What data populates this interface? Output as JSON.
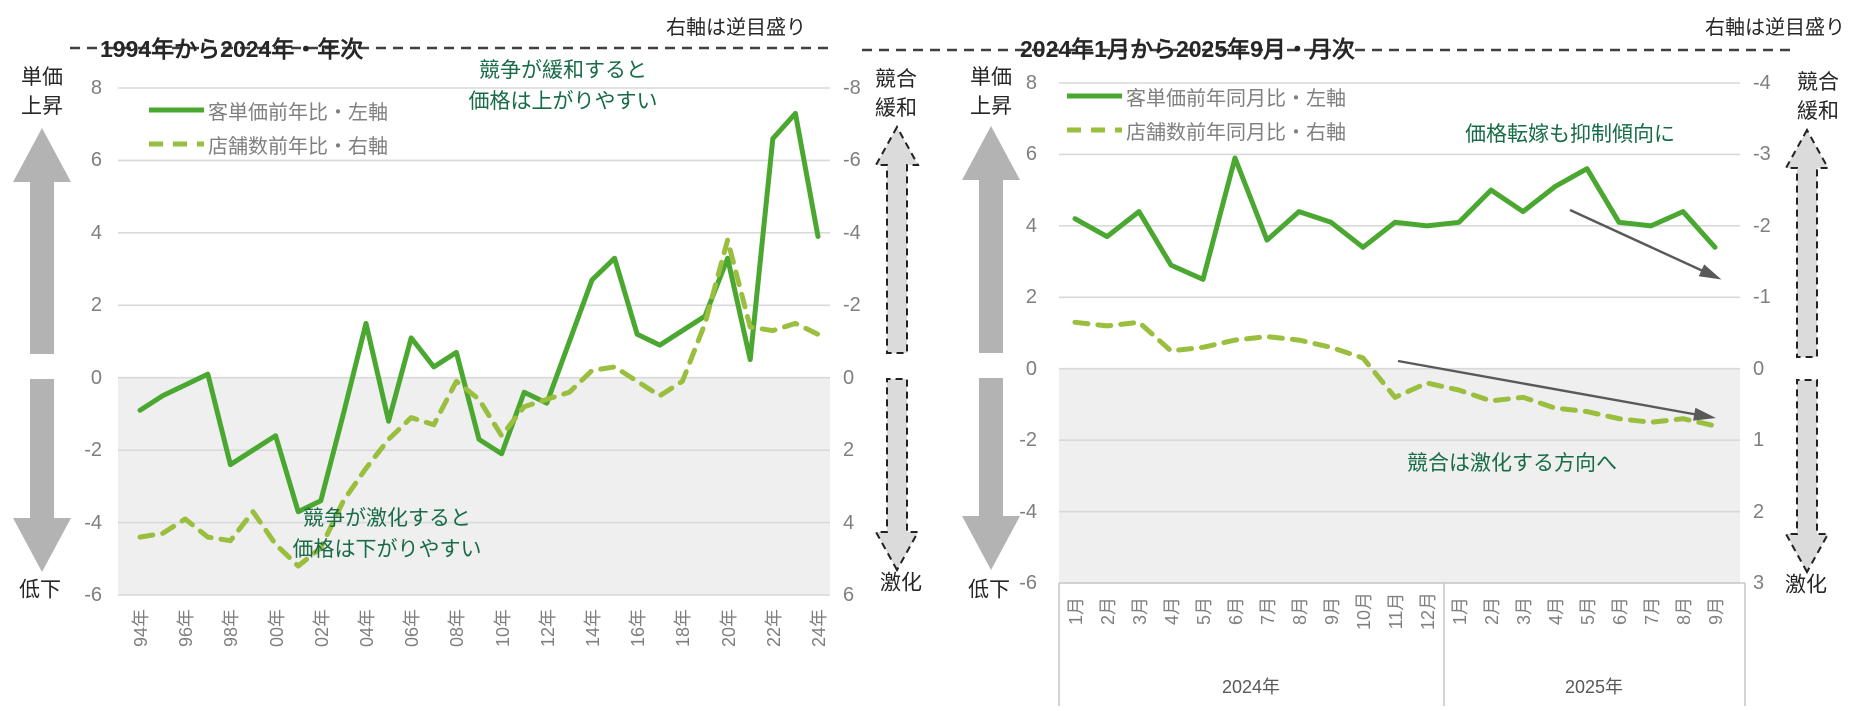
{
  "colors": {
    "price_line": "#4aa730",
    "stores_line": "#9abe3d",
    "annotation_text": "#176b47",
    "title_text": "#262626",
    "tick_text": "#7f7f7f",
    "gridline": "#d9d9d9",
    "shaded_band": "#efefef",
    "solid_axis_arrow": "#b3b3b3",
    "dashed_axis_arrow_fill": "#dbdbdb",
    "dashed_axis_arrow_stroke": "#222222",
    "trend_arrow": "#595959",
    "axis_divider": "#c9c9c9",
    "title_underline": "#404040"
  },
  "chart_data": [
    {
      "type": "line",
      "title": "1994年から2024年・年次",
      "right_axis_note": "右軸は逆目盛り",
      "categories": [
        1994,
        1995,
        1996,
        1997,
        1998,
        1999,
        2000,
        2001,
        2002,
        2003,
        2004,
        2005,
        2006,
        2007,
        2008,
        2009,
        2010,
        2011,
        2012,
        2013,
        2014,
        2015,
        2016,
        2017,
        2018,
        2019,
        2020,
        2021,
        2022,
        2023,
        2024
      ],
      "x_tick_labels": [
        "94年",
        "96年",
        "98年",
        "00年",
        "02年",
        "04年",
        "06年",
        "08年",
        "10年",
        "12年",
        "14年",
        "16年",
        "18年",
        "20年",
        "22年",
        "24年"
      ],
      "series": [
        {
          "name": "客単価前年比・左軸",
          "axis": "left",
          "line_style": "solid",
          "values": [
            -0.9,
            -0.5,
            -0.2,
            0.1,
            -2.4,
            -2.0,
            -1.6,
            -3.7,
            -3.4,
            -1.0,
            1.5,
            -1.2,
            1.1,
            0.3,
            0.7,
            -1.7,
            -2.1,
            -0.4,
            -0.7,
            1.0,
            2.7,
            3.3,
            1.2,
            0.9,
            1.3,
            1.7,
            3.3,
            0.5,
            6.6,
            7.3,
            3.9
          ]
        },
        {
          "name": "店舗数前年比・右軸",
          "axis": "right",
          "line_style": "dashed",
          "values": [
            4.4,
            4.3,
            3.9,
            4.4,
            4.5,
            3.7,
            4.6,
            5.2,
            4.7,
            3.4,
            2.5,
            1.7,
            1.1,
            1.3,
            0.1,
            0.6,
            1.6,
            0.8,
            0.6,
            0.4,
            -0.2,
            -0.3,
            0.1,
            0.5,
            0.1,
            -1.5,
            -3.8,
            -1.4,
            -1.3,
            -1.5,
            -1.2
          ]
        }
      ],
      "left_axis": {
        "max": 8,
        "min": -6,
        "ticks": [
          8,
          6,
          4,
          2,
          0,
          -2,
          -4,
          -6
        ],
        "top_label": [
          "単価",
          "上昇"
        ],
        "bottom_label": "低下"
      },
      "right_axis": {
        "reversed": true,
        "ticks": [
          -8,
          -6,
          -4,
          -2,
          0,
          2,
          4,
          6
        ],
        "top_label": [
          "競合",
          "緩和"
        ],
        "bottom_label": "激化"
      },
      "annotations": {
        "top": [
          "競争が緩和すると",
          "価格は上がりやすい"
        ],
        "bottom": [
          "競争が激化すると",
          "価格は下がりやすい"
        ]
      },
      "grid": true,
      "shaded_band": {
        "from": 0,
        "to": -6
      }
    },
    {
      "type": "line",
      "title": "2024年1月から2025年9月・月次",
      "right_axis_note": "右軸は逆目盛り",
      "categories": [
        "2024-01",
        "2024-02",
        "2024-03",
        "2024-04",
        "2024-05",
        "2024-06",
        "2024-07",
        "2024-08",
        "2024-09",
        "2024-10",
        "2024-11",
        "2024-12",
        "2025-01",
        "2025-02",
        "2025-03",
        "2025-04",
        "2025-05",
        "2025-06",
        "2025-07",
        "2025-08",
        "2025-09"
      ],
      "x_tick_labels": [
        "1月",
        "2月",
        "3月",
        "4月",
        "5月",
        "6月",
        "7月",
        "8月",
        "9月",
        "10月",
        "11月",
        "12月",
        "1月",
        "2月",
        "3月",
        "4月",
        "5月",
        "6月",
        "7月",
        "8月",
        "9月"
      ],
      "x_groups": [
        {
          "label": "2024年",
          "count": 12
        },
        {
          "label": "2025年",
          "count": 9
        }
      ],
      "series": [
        {
          "name": "客単価前年同月比・左軸",
          "axis": "left",
          "line_style": "solid",
          "values": [
            4.2,
            3.7,
            4.4,
            2.9,
            2.5,
            5.9,
            3.6,
            4.4,
            4.1,
            3.4,
            4.1,
            4.0,
            4.1,
            5.0,
            4.4,
            5.1,
            5.6,
            4.1,
            4.0,
            4.4,
            3.4
          ]
        },
        {
          "name": "店舗数前年同月比・右軸",
          "axis": "right",
          "line_style": "dashed",
          "values": [
            -0.65,
            -0.6,
            -0.65,
            -0.25,
            -0.3,
            -0.4,
            -0.45,
            -0.4,
            -0.3,
            -0.15,
            0.4,
            0.2,
            0.3,
            0.45,
            0.4,
            0.55,
            0.6,
            0.7,
            0.75,
            0.7,
            0.8
          ]
        }
      ],
      "left_axis": {
        "max": 8,
        "min": -6,
        "ticks": [
          8,
          6,
          4,
          2,
          0,
          -2,
          -4,
          -6
        ],
        "top_label": [
          "単価",
          "上昇"
        ],
        "bottom_label": "低下"
      },
      "right_axis": {
        "reversed": true,
        "ticks": [
          -4,
          -3,
          -2,
          -1,
          0,
          1,
          2,
          3
        ],
        "top_label": [
          "競合",
          "緩和"
        ],
        "bottom_label": "激化"
      },
      "annotations": {
        "top": [
          "価格転嫁も抑制傾向に"
        ],
        "bottom": [
          "競合は激化する方向へ"
        ]
      },
      "grid": true,
      "shaded_band": {
        "from": 0,
        "to": -6
      },
      "trend_arrows": 2
    }
  ]
}
